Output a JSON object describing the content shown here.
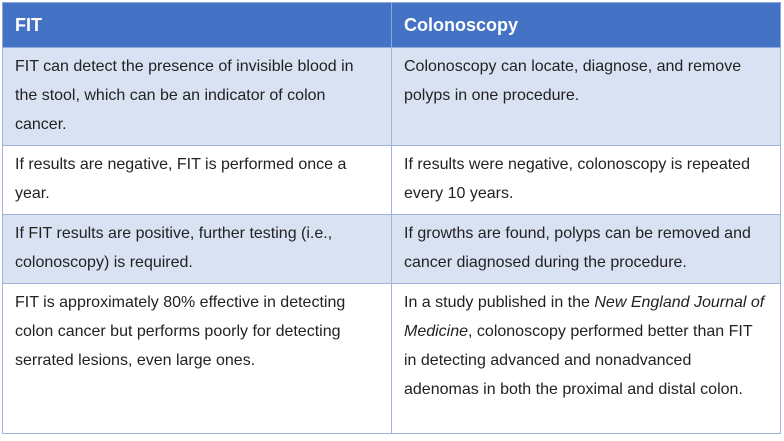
{
  "table": {
    "headers": [
      "FIT",
      "Colonoscopy"
    ],
    "rows": [
      {
        "fit": "FIT can detect the presence of invisible blood in the stool, which can be an indicator of colon cancer.",
        "colonoscopy": "Colonoscopy can locate, diagnose, and remove polyps in one procedure."
      },
      {
        "fit": "If results are negative, FIT is performed once a year.",
        "colonoscopy": "If results were negative, colonoscopy is repeated every 10 years."
      },
      {
        "fit": "If FIT results are positive, further testing (i.e., colonoscopy) is required.",
        "colonoscopy": "If growths are found, polyps can be removed and cancer diagnosed during the procedure."
      },
      {
        "fit": "FIT is approximately 80% effective in detecting colon cancer but performs poorly for detecting serrated lesions, even large ones.",
        "colonoscopy_pre": "In a study published in the ",
        "colonoscopy_journal": "New England Journal of Medicine",
        "colonoscopy_post": ", colonoscopy performed better than FIT in detecting advanced and nonadvanced adenomas in both the proximal and distal colon."
      }
    ]
  },
  "colors": {
    "header_bg": "#4472c4",
    "shaded_row_bg": "#d9e2f3"
  }
}
